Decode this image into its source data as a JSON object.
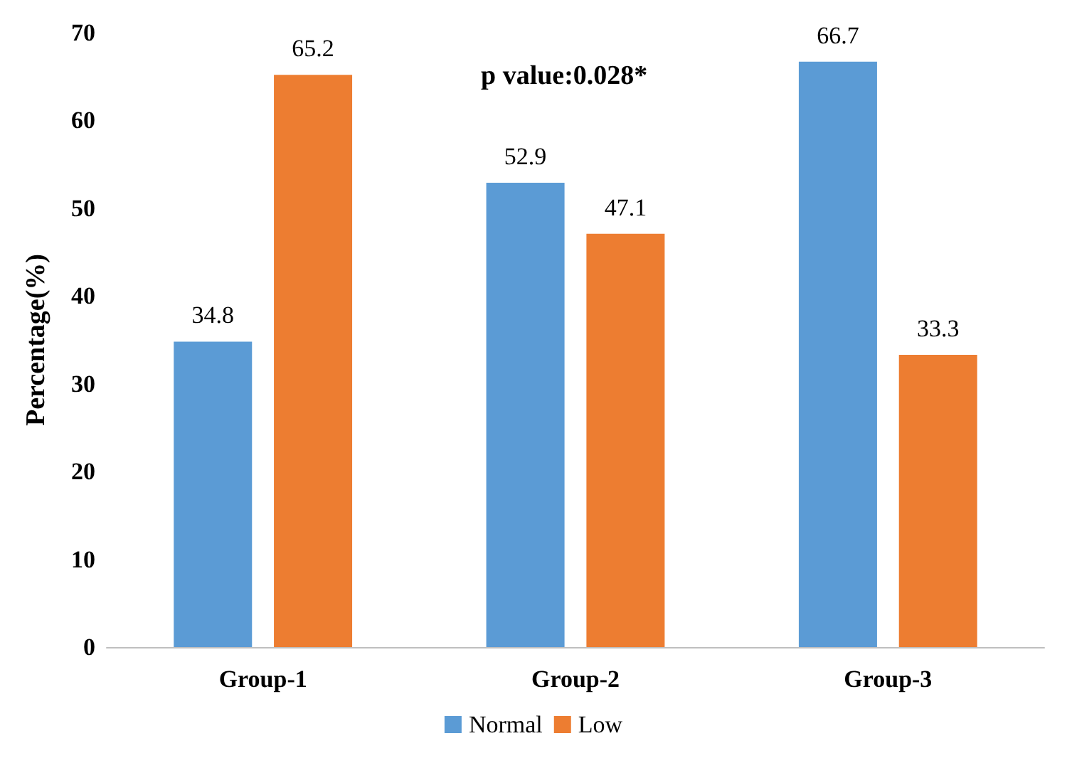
{
  "chart_data": {
    "type": "bar",
    "ylabel": "Percentage(%)",
    "categories": [
      "Group-1",
      "Group-2",
      "Group-3"
    ],
    "series": [
      {
        "name": "Normal",
        "color": "#5b9bd5",
        "values": [
          34.8,
          52.9,
          66.7
        ]
      },
      {
        "name": "Low",
        "color": "#ed7d31",
        "values": [
          65.2,
          47.1,
          33.3
        ]
      }
    ],
    "ylim": [
      0,
      70
    ],
    "yticks": [
      0,
      10,
      20,
      30,
      40,
      50,
      60,
      70
    ],
    "grid": false,
    "legend": "bottom",
    "data_labels": true,
    "annotations": [
      "p value:0.028*"
    ]
  }
}
